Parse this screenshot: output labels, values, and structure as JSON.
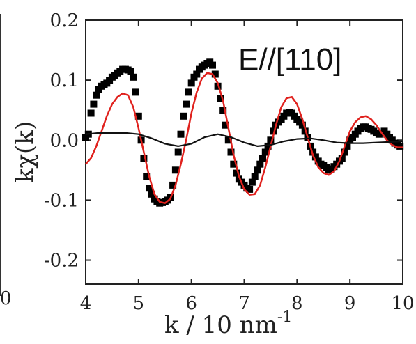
{
  "chart_data": {
    "type": "scatter",
    "annotation": "E//[110]",
    "xlabel": "k / 10 nm",
    "xlabel_sup": "-1",
    "ylabel": "kχ(k)",
    "xlim": [
      4,
      10
    ],
    "ylim": [
      -0.24,
      0.2
    ],
    "x_ticks": [
      4,
      5,
      6,
      7,
      8,
      9,
      10
    ],
    "y_ticks": [
      0.2,
      0.1,
      0.0,
      -0.1,
      -0.2
    ],
    "y_tick_labels": [
      "0.2",
      "0.1",
      "0.0",
      "-0.1",
      "-0.2"
    ],
    "grid": false,
    "series": [
      {
        "style": "markers",
        "color": "#000000",
        "x": [
          4.0,
          4.05,
          4.1,
          4.15,
          4.2,
          4.25,
          4.3,
          4.35,
          4.4,
          4.45,
          4.5,
          4.55,
          4.6,
          4.65,
          4.7,
          4.75,
          4.8,
          4.85,
          4.9,
          4.95,
          5.0,
          5.05,
          5.1,
          5.15,
          5.2,
          5.25,
          5.3,
          5.35,
          5.4,
          5.45,
          5.5,
          5.55,
          5.6,
          5.65,
          5.7,
          5.75,
          5.8,
          5.85,
          5.9,
          5.95,
          6.0,
          6.05,
          6.1,
          6.15,
          6.2,
          6.25,
          6.3,
          6.35,
          6.4,
          6.45,
          6.5,
          6.55,
          6.6,
          6.65,
          6.7,
          6.75,
          6.8,
          6.85,
          6.9,
          6.95,
          7.0,
          7.05,
          7.1,
          7.15,
          7.2,
          7.25,
          7.3,
          7.35,
          7.4,
          7.45,
          7.5,
          7.55,
          7.6,
          7.65,
          7.7,
          7.75,
          7.8,
          7.85,
          7.9,
          7.95,
          8.0,
          8.05,
          8.1,
          8.15,
          8.2,
          8.25,
          8.3,
          8.35,
          8.4,
          8.45,
          8.5,
          8.55,
          8.6,
          8.65,
          8.7,
          8.75,
          8.8,
          8.85,
          8.9,
          8.95,
          9.0,
          9.05,
          9.1,
          9.15,
          9.2,
          9.25,
          9.3,
          9.35,
          9.4,
          9.45,
          9.5,
          9.55,
          9.6,
          9.65,
          9.7,
          9.75,
          9.8,
          9.85,
          9.9,
          9.95
        ],
        "y": [
          0.005,
          0.01,
          0.045,
          0.06,
          0.075,
          0.085,
          0.09,
          0.092,
          0.095,
          0.1,
          0.105,
          0.108,
          0.112,
          0.115,
          0.118,
          0.118,
          0.117,
          0.115,
          0.105,
          0.08,
          0.04,
          0.0,
          -0.03,
          -0.06,
          -0.08,
          -0.09,
          -0.098,
          -0.102,
          -0.105,
          -0.104,
          -0.103,
          -0.1,
          -0.095,
          -0.075,
          -0.05,
          -0.02,
          0.01,
          0.04,
          0.06,
          0.08,
          0.095,
          0.105,
          0.11,
          0.118,
          0.122,
          0.125,
          0.128,
          0.13,
          0.125,
          0.11,
          0.09,
          0.07,
          0.05,
          0.025,
          0.0,
          -0.02,
          -0.04,
          -0.055,
          -0.065,
          -0.07,
          -0.075,
          -0.08,
          -0.082,
          -0.07,
          -0.06,
          -0.05,
          -0.04,
          -0.03,
          -0.02,
          -0.01,
          0.0,
          0.015,
          0.025,
          0.03,
          0.035,
          0.04,
          0.045,
          0.046,
          0.045,
          0.04,
          0.035,
          0.03,
          0.025,
          0.015,
          0.005,
          -0.01,
          -0.02,
          -0.028,
          -0.035,
          -0.04,
          -0.042,
          -0.045,
          -0.05,
          -0.048,
          -0.044,
          -0.04,
          -0.035,
          -0.03,
          -0.02,
          -0.01,
          0.0,
          0.005,
          0.01,
          0.015,
          0.02,
          0.022,
          0.022,
          0.02,
          0.018,
          0.015,
          0.012,
          0.01,
          0.012,
          0.015,
          0.01,
          0.005,
          0.0,
          -0.005,
          -0.008,
          -0.01
        ]
      },
      {
        "style": "line",
        "color": "#e0211d",
        "x": [
          4.0,
          4.1,
          4.2,
          4.3,
          4.4,
          4.5,
          4.6,
          4.7,
          4.8,
          4.9,
          5.0,
          5.1,
          5.2,
          5.3,
          5.4,
          5.5,
          5.6,
          5.7,
          5.8,
          5.9,
          6.0,
          6.1,
          6.2,
          6.3,
          6.4,
          6.5,
          6.6,
          6.7,
          6.8,
          6.9,
          7.0,
          7.1,
          7.2,
          7.3,
          7.4,
          7.5,
          7.6,
          7.7,
          7.8,
          7.9,
          8.0,
          8.1,
          8.2,
          8.3,
          8.4,
          8.5,
          8.6,
          8.7,
          8.8,
          8.9,
          9.0,
          9.1,
          9.2,
          9.3,
          9.4,
          9.5,
          9.6,
          9.7,
          9.8,
          9.9,
          10.0
        ],
        "y": [
          -0.04,
          -0.03,
          -0.01,
          0.015,
          0.04,
          0.06,
          0.072,
          0.078,
          0.075,
          0.055,
          0.02,
          -0.02,
          -0.06,
          -0.09,
          -0.103,
          -0.105,
          -0.098,
          -0.075,
          -0.04,
          0.0,
          0.045,
          0.08,
          0.103,
          0.112,
          0.11,
          0.095,
          0.065,
          0.02,
          -0.025,
          -0.06,
          -0.082,
          -0.091,
          -0.09,
          -0.075,
          -0.045,
          -0.01,
          0.025,
          0.055,
          0.07,
          0.072,
          0.06,
          0.035,
          0.005,
          -0.025,
          -0.045,
          -0.055,
          -0.058,
          -0.052,
          -0.035,
          -0.01,
          0.015,
          0.03,
          0.038,
          0.04,
          0.035,
          0.025,
          0.012,
          0.0,
          -0.008,
          -0.012,
          -0.012
        ]
      },
      {
        "style": "line",
        "color": "#111111",
        "x": [
          4.0,
          4.25,
          4.5,
          4.75,
          5.0,
          5.25,
          5.5,
          5.75,
          6.0,
          6.25,
          6.5,
          6.75,
          7.0,
          7.25,
          7.5,
          7.75,
          8.0,
          8.25,
          8.5,
          8.75,
          9.0,
          9.25,
          9.5,
          9.75,
          10.0
        ],
        "y": [
          0.01,
          0.012,
          0.012,
          0.012,
          0.01,
          0.003,
          -0.006,
          -0.01,
          -0.006,
          0.005,
          0.01,
          0.005,
          -0.004,
          -0.01,
          -0.008,
          -0.002,
          0.002,
          0.003,
          0.0,
          -0.004,
          -0.005,
          -0.005,
          -0.004,
          -0.003,
          -0.002
        ]
      }
    ]
  }
}
